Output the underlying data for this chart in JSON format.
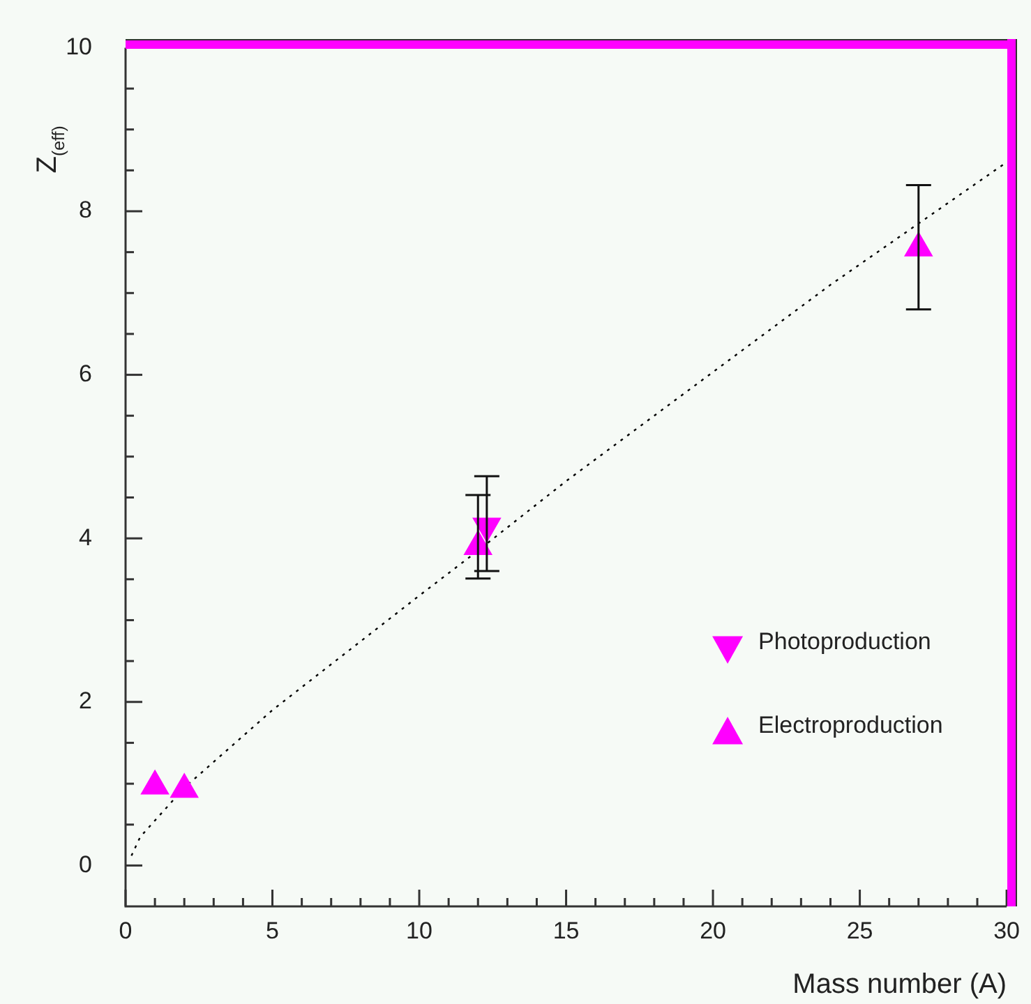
{
  "chart_data": {
    "type": "scatter",
    "xlabel": "Mass number (A)",
    "ylabel": "Z$_{(eff)}$",
    "xlim": [
      0,
      30
    ],
    "ylim": [
      -0.5,
      10
    ],
    "xticks": [
      0,
      {
        "value": 1,
        "label": null
      },
      {
        "value": 2,
        "label": null
      },
      {
        "value": 3,
        "label": null
      },
      {
        "value": 4,
        "label": null
      },
      5,
      {
        "value": 6,
        "label": null
      },
      {
        "value": 7,
        "label": null
      },
      {
        "value": 8,
        "label": null
      },
      {
        "value": 9,
        "label": null
      },
      10,
      {
        "value": 11,
        "label": null
      },
      {
        "value": 12,
        "label": null
      },
      {
        "value": 13,
        "label": null
      },
      {
        "value": 14,
        "label": null
      },
      15,
      {
        "value": 16,
        "label": null
      },
      {
        "value": 17,
        "label": null
      },
      {
        "value": 18,
        "label": null
      },
      {
        "value": 19,
        "label": null
      },
      20,
      {
        "value": 21,
        "label": null
      },
      {
        "value": 22,
        "label": null
      },
      {
        "value": 23,
        "label": null
      },
      {
        "value": 24,
        "label": null
      },
      25,
      {
        "value": 26,
        "label": null
      },
      {
        "value": 27,
        "label": null
      },
      {
        "value": 28,
        "label": null
      },
      {
        "value": 29,
        "label": null
      },
      30
    ],
    "yticks": [
      0,
      {
        "value": 0.5,
        "label": null
      },
      {
        "value": 1,
        "label": null
      },
      {
        "value": 1.5,
        "label": null
      },
      2,
      {
        "value": 2.5,
        "label": null
      },
      {
        "value": 3,
        "label": null
      },
      {
        "value": 3.5,
        "label": null
      },
      4,
      {
        "value": 4.5,
        "label": null
      },
      {
        "value": 5,
        "label": null
      },
      {
        "value": 5.5,
        "label": null
      },
      6,
      {
        "value": 6.5,
        "label": null
      },
      {
        "value": 7,
        "label": null
      },
      {
        "value": 7.5,
        "label": null
      },
      8,
      {
        "value": 8.5,
        "label": null
      },
      {
        "value": 9,
        "label": null
      },
      {
        "value": 9.5,
        "label": null
      },
      10
    ],
    "grid": false,
    "legend": "bottom right",
    "series": [
      {
        "name": "Photoproduction",
        "color": "#ff00ff",
        "marker": "triangle-down",
        "x": [
          12.3
        ],
        "values": [
          4.15
        ],
        "errors": [
          [
            3.6,
            4.76
          ]
        ]
      },
      {
        "name": "Electroproduction",
        "color": "#ff00ff",
        "marker": "triangle",
        "x": [
          1,
          2,
          12,
          27
        ],
        "values": [
          0.97,
          0.93,
          3.9,
          7.55
        ],
        "errors": [
          null,
          null,
          [
            3.51,
            4.53
          ],
          [
            6.8,
            8.32
          ]
        ]
      },
      {
        "type": "line",
        "color": "#000000",
        "line_style": "dotted",
        "marker": "none",
        "x": [
          0.2,
          0.5,
          2,
          5,
          10,
          12,
          15,
          18,
          21,
          24,
          27,
          30
        ],
        "values": [
          0.12,
          0.35,
          0.95,
          1.9,
          3.3,
          3.85,
          4.7,
          5.5,
          6.3,
          7.1,
          7.85,
          8.6
        ]
      }
    ]
  }
}
